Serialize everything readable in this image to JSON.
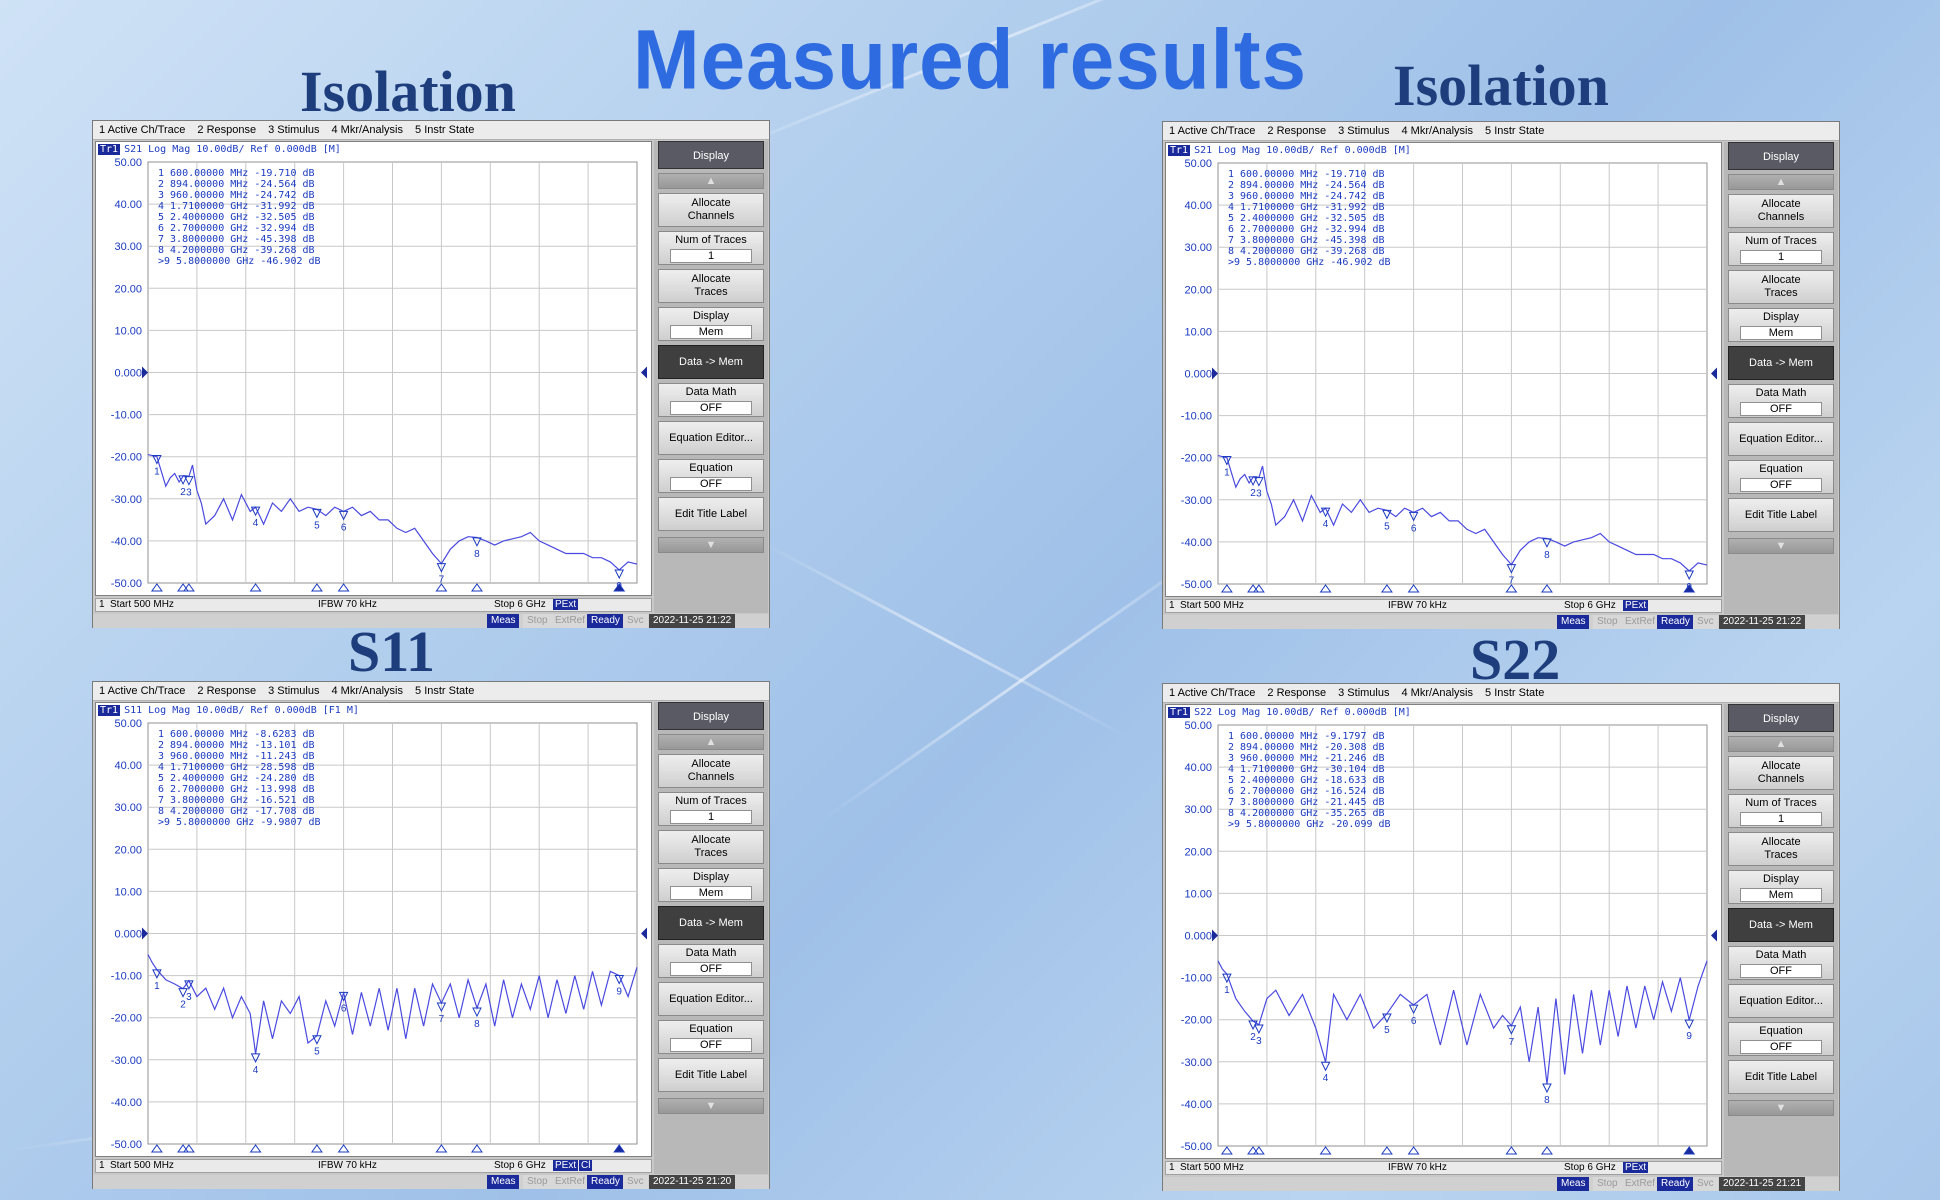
{
  "page_title": "Measured results",
  "panels": [
    {
      "id": "p1",
      "label": "Isolation",
      "trace_header": "S21 Log Mag 10.00dB/ Ref 0.000dB [M]",
      "trace_badge": "Tr1",
      "markers_text": [
        " 1   600.00000 MHz -19.710 dB",
        " 2   894.00000 MHz -24.564 dB",
        " 3   960.00000 MHz -24.742 dB",
        " 4   1.7100000 GHz -31.992 dB",
        " 5   2.4000000 GHz -32.505 dB",
        " 6   2.7000000 GHz -32.994 dB",
        " 7   3.8000000 GHz -45.398 dB",
        " 8   4.2000000 GHz -39.268 dB",
        ">9   5.8000000 GHz -46.902 dB"
      ],
      "bottom": {
        "channel": "1",
        "start": "Start 500 MHz",
        "ifbw": "IFBW 70 kHz",
        "stop": "Stop 6 GHz",
        "pext": "PExt",
        "extra": ""
      },
      "status": {
        "meas": "Meas",
        "stop": "Stop",
        "extref": "ExtRef",
        "ready": "Ready",
        "svc": "Svc",
        "time": "2022-11-25 21:22"
      }
    },
    {
      "id": "p2",
      "label": "Isolation",
      "trace_header": "S21 Log Mag 10.00dB/ Ref 0.000dB [M]",
      "trace_badge": "Tr1",
      "markers_text": [
        " 1   600.00000 MHz -19.710 dB",
        " 2   894.00000 MHz -24.564 dB",
        " 3   960.00000 MHz -24.742 dB",
        " 4   1.7100000 GHz -31.992 dB",
        " 5   2.4000000 GHz -32.505 dB",
        " 6   2.7000000 GHz -32.994 dB",
        " 7   3.8000000 GHz -45.398 dB",
        " 8   4.2000000 GHz -39.268 dB",
        ">9   5.8000000 GHz -46.902 dB"
      ],
      "bottom": {
        "channel": "1",
        "start": "Start 500 MHz",
        "ifbw": "IFBW 70 kHz",
        "stop": "Stop 6 GHz",
        "pext": "PExt",
        "extra": ""
      },
      "status": {
        "meas": "Meas",
        "stop": "Stop",
        "extref": "ExtRef",
        "ready": "Ready",
        "svc": "Svc",
        "time": "2022-11-25 21:22"
      }
    },
    {
      "id": "p3",
      "label": "S11",
      "trace_header": "S11 Log Mag 10.00dB/ Ref 0.000dB [F1 M]",
      "trace_badge": "Tr1",
      "markers_text": [
        " 1   600.00000 MHz -8.6283 dB",
        " 2   894.00000 MHz -13.101 dB",
        " 3   960.00000 MHz -11.243 dB",
        " 4   1.7100000 GHz -28.598 dB",
        " 5   2.4000000 GHz -24.280 dB",
        " 6   2.7000000 GHz -13.998 dB",
        " 7   3.8000000 GHz -16.521 dB",
        " 8   4.2000000 GHz -17.708 dB",
        ">9   5.8000000 GHz -9.9807 dB"
      ],
      "bottom": {
        "channel": "1",
        "start": "Start 500 MHz",
        "ifbw": "IFBW 70 kHz",
        "stop": "Stop 6 GHz",
        "pext": "PExt",
        "extra": "Cl"
      },
      "status": {
        "meas": "Meas",
        "stop": "Stop",
        "extref": "ExtRef",
        "ready": "Ready",
        "svc": "Svc",
        "time": "2022-11-25 21:20"
      }
    },
    {
      "id": "p4",
      "label": "S22",
      "trace_header": "S22 Log Mag 10.00dB/ Ref 0.000dB [M]",
      "trace_badge": "Tr1",
      "markers_text": [
        " 1   600.00000 MHz -9.1797 dB",
        " 2   894.00000 MHz -20.308 dB",
        " 3   960.00000 MHz -21.246 dB",
        " 4   1.7100000 GHz -30.104 dB",
        " 5   2.4000000 GHz -18.633 dB",
        " 6   2.7000000 GHz -16.524 dB",
        " 7   3.8000000 GHz -21.445 dB",
        " 8   4.2000000 GHz -35.265 dB",
        ">9   5.8000000 GHz -20.099 dB"
      ],
      "bottom": {
        "channel": "1",
        "start": "Start 500 MHz",
        "ifbw": "IFBW 70 kHz",
        "stop": "Stop 6 GHz",
        "pext": "PExt",
        "extra": ""
      },
      "status": {
        "meas": "Meas",
        "stop": "Stop",
        "extref": "ExtRef",
        "ready": "Ready",
        "svc": "Svc",
        "time": "2022-11-25 21:21"
      }
    }
  ],
  "menu_bar": [
    "1 Active Ch/Trace",
    "2 Response",
    "3 Stimulus",
    "4 Mkr/Analysis",
    "5 Instr State"
  ],
  "softkeys": {
    "display": "Display",
    "allocate_channels": [
      "Allocate",
      "Channels"
    ],
    "num_traces": "Num of Traces",
    "num_traces_value": "1",
    "allocate_traces": [
      "Allocate",
      "Traces"
    ],
    "display_sub": "Display",
    "display_sub_value": "Mem",
    "data_to_mem": "Data -> Mem",
    "data_math": "Data Math",
    "data_math_value": "OFF",
    "equation_editor": "Equation Editor...",
    "equation": "Equation",
    "equation_value": "OFF",
    "edit_title": "Edit Title Label"
  },
  "colors": {
    "trace": "#4a4ae0",
    "grid": "#c8c8c8",
    "marker": "#1a3ac0",
    "axis_text": "#1a3ac0"
  },
  "chart_data": [
    {
      "type": "line",
      "xlabel": "",
      "ylabel": "",
      "ylim": [
        -50,
        50
      ],
      "xlim": [
        0.5,
        6.0
      ],
      "y_ticks": [
        "50.00",
        "40.00",
        "30.00",
        "20.00",
        "10.00",
        "0.000",
        "-10.00",
        "-20.00",
        "-30.00",
        "-40.00",
        "-50.00"
      ],
      "ref_level": 0,
      "grid": true,
      "series": [
        {
          "x": [
            0.5,
            0.6,
            0.7,
            0.75,
            0.8,
            0.85,
            0.9,
            0.96,
            1.0,
            1.05,
            1.1,
            1.15,
            1.25,
            1.35,
            1.45,
            1.55,
            1.65,
            1.71,
            1.8,
            1.9,
            2.0,
            2.1,
            2.2,
            2.3,
            2.4,
            2.5,
            2.6,
            2.7,
            2.8,
            2.9,
            3.0,
            3.1,
            3.2,
            3.3,
            3.4,
            3.5,
            3.6,
            3.7,
            3.8,
            3.9,
            4.0,
            4.1,
            4.2,
            4.3,
            4.4,
            4.5,
            4.6,
            4.7,
            4.8,
            4.9,
            5.0,
            5.1,
            5.2,
            5.3,
            5.4,
            5.5,
            5.6,
            5.7,
            5.8,
            5.9,
            6.0
          ],
          "y": [
            -19.5,
            -20,
            -27,
            -25,
            -24,
            -26,
            -24.5,
            -24.7,
            -22,
            -28,
            -31,
            -36,
            -34,
            -30,
            -35,
            -29,
            -33,
            -32,
            -36,
            -31,
            -33,
            -30,
            -33,
            -32,
            -32.5,
            -34,
            -32,
            -33,
            -32,
            -34,
            -33,
            -35,
            -35,
            -37,
            -38,
            -37,
            -40,
            -43,
            -45.4,
            -42,
            -40,
            -39,
            -39.2,
            -40,
            -41,
            -40,
            -39.5,
            -39,
            -38,
            -40,
            -41,
            -42,
            -43,
            -43,
            -43,
            -44,
            -44,
            -45,
            -46.9,
            -45,
            -45.5
          ]
        }
      ],
      "markers": [
        {
          "n": "1",
          "x": 0.6,
          "y": -19.71
        },
        {
          "n": "2",
          "x": 0.894,
          "y": -24.564
        },
        {
          "n": "3",
          "x": 0.96,
          "y": -24.742
        },
        {
          "n": "4",
          "x": 1.71,
          "y": -31.992
        },
        {
          "n": "5",
          "x": 2.4,
          "y": -32.505
        },
        {
          "n": "6",
          "x": 2.7,
          "y": -32.994
        },
        {
          "n": "7",
          "x": 3.8,
          "y": -45.398
        },
        {
          "n": "8",
          "x": 4.2,
          "y": -39.268
        },
        {
          "n": "9",
          "x": 5.8,
          "y": -46.902
        }
      ]
    },
    {
      "type": "line",
      "xlabel": "",
      "ylabel": "",
      "ylim": [
        -50,
        50
      ],
      "xlim": [
        0.5,
        6.0
      ],
      "y_ticks": [
        "50.00",
        "40.00",
        "30.00",
        "20.00",
        "10.00",
        "0.000",
        "-10.00",
        "-20.00",
        "-30.00",
        "-40.00",
        "-50.00"
      ],
      "ref_level": 0,
      "grid": true,
      "series": [
        {
          "x": [
            0.5,
            0.6,
            0.7,
            0.75,
            0.8,
            0.85,
            0.9,
            0.96,
            1.0,
            1.05,
            1.1,
            1.15,
            1.25,
            1.35,
            1.45,
            1.55,
            1.65,
            1.71,
            1.8,
            1.9,
            2.0,
            2.1,
            2.2,
            2.3,
            2.4,
            2.5,
            2.6,
            2.7,
            2.8,
            2.9,
            3.0,
            3.1,
            3.2,
            3.3,
            3.4,
            3.5,
            3.6,
            3.7,
            3.8,
            3.9,
            4.0,
            4.1,
            4.2,
            4.3,
            4.4,
            4.5,
            4.6,
            4.7,
            4.8,
            4.9,
            5.0,
            5.1,
            5.2,
            5.3,
            5.4,
            5.5,
            5.6,
            5.7,
            5.8,
            5.9,
            6.0
          ],
          "y": [
            -19.5,
            -20,
            -27,
            -25,
            -24,
            -26,
            -24.5,
            -24.7,
            -22,
            -28,
            -31,
            -36,
            -34,
            -30,
            -35,
            -29,
            -33,
            -32,
            -36,
            -31,
            -33,
            -30,
            -33,
            -32,
            -32.5,
            -34,
            -32,
            -33,
            -32,
            -34,
            -33,
            -35,
            -35,
            -37,
            -38,
            -37,
            -40,
            -43,
            -45.4,
            -42,
            -40,
            -39,
            -39.2,
            -40,
            -41,
            -40,
            -39.5,
            -39,
            -38,
            -40,
            -41,
            -42,
            -43,
            -43,
            -43,
            -44,
            -44,
            -45,
            -46.9,
            -45,
            -45.5
          ]
        }
      ],
      "markers": [
        {
          "n": "1",
          "x": 0.6,
          "y": -19.71
        },
        {
          "n": "2",
          "x": 0.894,
          "y": -24.564
        },
        {
          "n": "3",
          "x": 0.96,
          "y": -24.742
        },
        {
          "n": "4",
          "x": 1.71,
          "y": -31.992
        },
        {
          "n": "5",
          "x": 2.4,
          "y": -32.505
        },
        {
          "n": "6",
          "x": 2.7,
          "y": -32.994
        },
        {
          "n": "7",
          "x": 3.8,
          "y": -45.398
        },
        {
          "n": "8",
          "x": 4.2,
          "y": -39.268
        },
        {
          "n": "9",
          "x": 5.8,
          "y": -46.902
        }
      ]
    },
    {
      "type": "line",
      "xlabel": "",
      "ylabel": "",
      "ylim": [
        -50,
        50
      ],
      "xlim": [
        0.5,
        6.0
      ],
      "y_ticks": [
        "50.00",
        "40.00",
        "30.00",
        "20.00",
        "10.00",
        "0.000",
        "-10.00",
        "-20.00",
        "-30.00",
        "-40.00",
        "-50.00"
      ],
      "ref_level": 0,
      "grid": true,
      "series": [
        {
          "x": [
            0.5,
            0.55,
            0.6,
            0.7,
            0.8,
            0.894,
            0.96,
            1.05,
            1.15,
            1.25,
            1.35,
            1.45,
            1.55,
            1.65,
            1.71,
            1.8,
            1.9,
            2.0,
            2.1,
            2.2,
            2.3,
            2.4,
            2.5,
            2.6,
            2.7,
            2.8,
            2.9,
            3.0,
            3.1,
            3.2,
            3.3,
            3.4,
            3.5,
            3.6,
            3.7,
            3.8,
            3.9,
            4.0,
            4.1,
            4.2,
            4.3,
            4.4,
            4.5,
            4.6,
            4.7,
            4.8,
            4.9,
            5.0,
            5.1,
            5.2,
            5.3,
            5.4,
            5.5,
            5.6,
            5.7,
            5.8,
            5.9,
            6.0
          ],
          "y": [
            -5,
            -7,
            -8.6,
            -11,
            -12,
            -13.1,
            -11.2,
            -15,
            -13,
            -18,
            -13,
            -20,
            -15,
            -19,
            -28.6,
            -16,
            -25,
            -16,
            -19,
            -15,
            -26,
            -24.3,
            -16,
            -22,
            -14,
            -24,
            -14,
            -22,
            -13,
            -23,
            -13,
            -25,
            -13,
            -22,
            -12,
            -16.5,
            -12,
            -20,
            -11,
            -17.7,
            -12,
            -22,
            -11,
            -20,
            -12,
            -18,
            -10,
            -20,
            -11,
            -19,
            -10,
            -18,
            -9,
            -17,
            -9,
            -10,
            -15,
            -8
          ]
        }
      ],
      "markers": [
        {
          "n": "1",
          "x": 0.6,
          "y": -8.6283
        },
        {
          "n": "2",
          "x": 0.894,
          "y": -13.101
        },
        {
          "n": "3",
          "x": 0.96,
          "y": -11.243
        },
        {
          "n": "4",
          "x": 1.71,
          "y": -28.598
        },
        {
          "n": "5",
          "x": 2.4,
          "y": -24.28
        },
        {
          "n": "6",
          "x": 2.7,
          "y": -13.998
        },
        {
          "n": "7",
          "x": 3.8,
          "y": -16.521
        },
        {
          "n": "8",
          "x": 4.2,
          "y": -17.708
        },
        {
          "n": "9",
          "x": 5.8,
          "y": -9.9807
        }
      ]
    },
    {
      "type": "line",
      "xlabel": "",
      "ylabel": "",
      "ylim": [
        -50,
        50
      ],
      "xlim": [
        0.5,
        6.0
      ],
      "y_ticks": [
        "50.00",
        "40.00",
        "30.00",
        "20.00",
        "10.00",
        "0.000",
        "-10.00",
        "-20.00",
        "-30.00",
        "-40.00",
        "-50.00"
      ],
      "ref_level": 0,
      "grid": true,
      "series": [
        {
          "x": [
            0.5,
            0.55,
            0.6,
            0.7,
            0.8,
            0.894,
            0.96,
            1.05,
            1.15,
            1.3,
            1.45,
            1.6,
            1.71,
            1.8,
            1.95,
            2.1,
            2.25,
            2.4,
            2.55,
            2.7,
            2.85,
            3.0,
            3.15,
            3.3,
            3.45,
            3.6,
            3.7,
            3.8,
            3.9,
            4.0,
            4.1,
            4.2,
            4.3,
            4.4,
            4.5,
            4.6,
            4.7,
            4.8,
            4.9,
            5.0,
            5.1,
            5.2,
            5.3,
            5.4,
            5.5,
            5.6,
            5.7,
            5.8,
            5.9,
            6.0
          ],
          "y": [
            -6,
            -8,
            -9.2,
            -15,
            -18,
            -20.3,
            -21.2,
            -15,
            -13,
            -19,
            -14,
            -22,
            -30.1,
            -14,
            -20,
            -14,
            -22,
            -18.6,
            -14,
            -16.5,
            -14,
            -26,
            -13,
            -26,
            -14,
            -22,
            -19,
            -21.4,
            -17,
            -30,
            -17,
            -35.3,
            -15,
            -33,
            -14,
            -28,
            -13,
            -26,
            -13,
            -24,
            -12,
            -22,
            -12,
            -20,
            -11,
            -18,
            -10,
            -20.1,
            -12,
            -6
          ]
        }
      ],
      "markers": [
        {
          "n": "1",
          "x": 0.6,
          "y": -9.1797
        },
        {
          "n": "2",
          "x": 0.894,
          "y": -20.308
        },
        {
          "n": "3",
          "x": 0.96,
          "y": -21.246
        },
        {
          "n": "4",
          "x": 1.71,
          "y": -30.104
        },
        {
          "n": "5",
          "x": 2.4,
          "y": -18.633
        },
        {
          "n": "6",
          "x": 2.7,
          "y": -16.524
        },
        {
          "n": "7",
          "x": 3.8,
          "y": -21.445
        },
        {
          "n": "8",
          "x": 4.2,
          "y": -35.265
        },
        {
          "n": "9",
          "x": 5.8,
          "y": -20.099
        }
      ]
    }
  ]
}
